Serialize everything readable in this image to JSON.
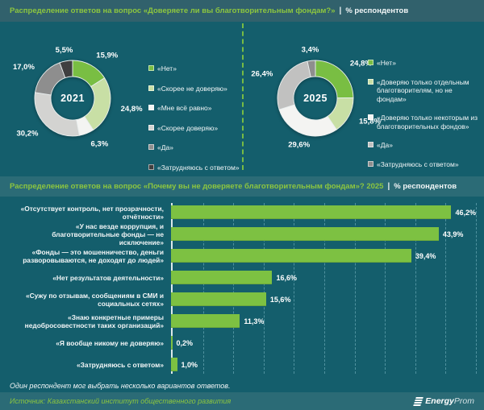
{
  "colors": {
    "background": "#145E6C",
    "top_band": "#31616C",
    "sub_band": "#2B6B76",
    "accent_green": "#8DC63F",
    "bar_green": "#7DC142",
    "axis_line": "#DDE9EB",
    "gridline": "#82BECA"
  },
  "header": {
    "title": "Распределение ответов на вопрос «Доверяете ли вы благотворительным фондам?»",
    "divider": "|",
    "unit": "% респондентов"
  },
  "subheader": {
    "title": "Распределение ответов на вопрос «Почему вы не доверяете благотворительным фондам»? 2025",
    "divider": "|",
    "unit": "% респондентов"
  },
  "footnote": "Один респондент мог выбрать несколько вариантов ответов.",
  "source": "Источник: Казахстанский институт общественного развития",
  "logo": {
    "icon": "stacked-bars-icon",
    "text_bold": "Energy",
    "text_light": "Prom"
  },
  "chart_data": [
    {
      "type": "pie",
      "subtype": "donut",
      "center_label": "2021",
      "title": "Доверяете ли вы благотворительным фондам? 2021",
      "unit": "% респондентов",
      "legend_position": "right",
      "labels": [
        "«Нет»",
        "«Скорее не доверяю»",
        "«Мне всё равно»",
        "«Скорее доверяю»",
        "«Да»",
        "«Затрудняюсь с ответом»"
      ],
      "values": [
        15.9,
        24.8,
        6.3,
        30.2,
        17.0,
        5.5
      ],
      "display_values": [
        "15,9%",
        "24,8%",
        "6,3%",
        "30,2%",
        "17,0%",
        "5,5%"
      ],
      "colors": [
        "#79BE43",
        "#C8DFA5",
        "#F4F4F2",
        "#D3D3D1",
        "#8E8E8E",
        "#3F3F3F"
      ]
    },
    {
      "type": "pie",
      "subtype": "donut",
      "center_label": "2025",
      "title": "Доверяете ли вы благотворительным фондам? 2025",
      "unit": "% респондентов",
      "legend_position": "right",
      "labels": [
        "«Нет»",
        "«Доверяю только отдельным благотворителям, но не фондам»",
        "«Доверяю только некоторым из благотворительных фондов»",
        "«Да»",
        "«Затрудняюсь с ответом»"
      ],
      "values": [
        24.8,
        15.8,
        29.6,
        26.4,
        3.4
      ],
      "display_values": [
        "24,8%",
        "15,8%",
        "29,6%",
        "26,4%",
        "3,4%"
      ],
      "colors": [
        "#79BE43",
        "#C8DFA5",
        "#F4F4F2",
        "#C1C1C0",
        "#8E8E8E"
      ]
    },
    {
      "type": "bar",
      "orientation": "horizontal",
      "title": "Почему вы не доверяете благотворительным фондам? 2025",
      "unit": "% респондентов",
      "xlim": [
        0,
        50
      ],
      "gridline_step": 5,
      "grid": true,
      "bar_color": "#7DC142",
      "categories": [
        "«Отсутствует контроль, нет прозрачности, отчётности»",
        "«У нас везде коррупция, и благотворительные фонды — не исключение»",
        "«Фонды — это мошенничество, деньги разворовываются, не доходят до людей»",
        "«Нет результатов деятельности»",
        "«Сужу по отзывам, сообщениям в СМИ и социальных сетях»",
        "«Знаю конкретные примеры недобросовестности таких организаций»",
        "«Я вообще никому не доверяю»",
        "«Затрудняюсь с ответом»"
      ],
      "values": [
        46.2,
        43.9,
        39.4,
        16.6,
        15.6,
        11.3,
        0.2,
        1.0
      ],
      "display_values": [
        "46,2%",
        "43,9%",
        "39,4%",
        "16,6%",
        "15,6%",
        "11,3%",
        "0,2%",
        "1,0%"
      ]
    }
  ]
}
